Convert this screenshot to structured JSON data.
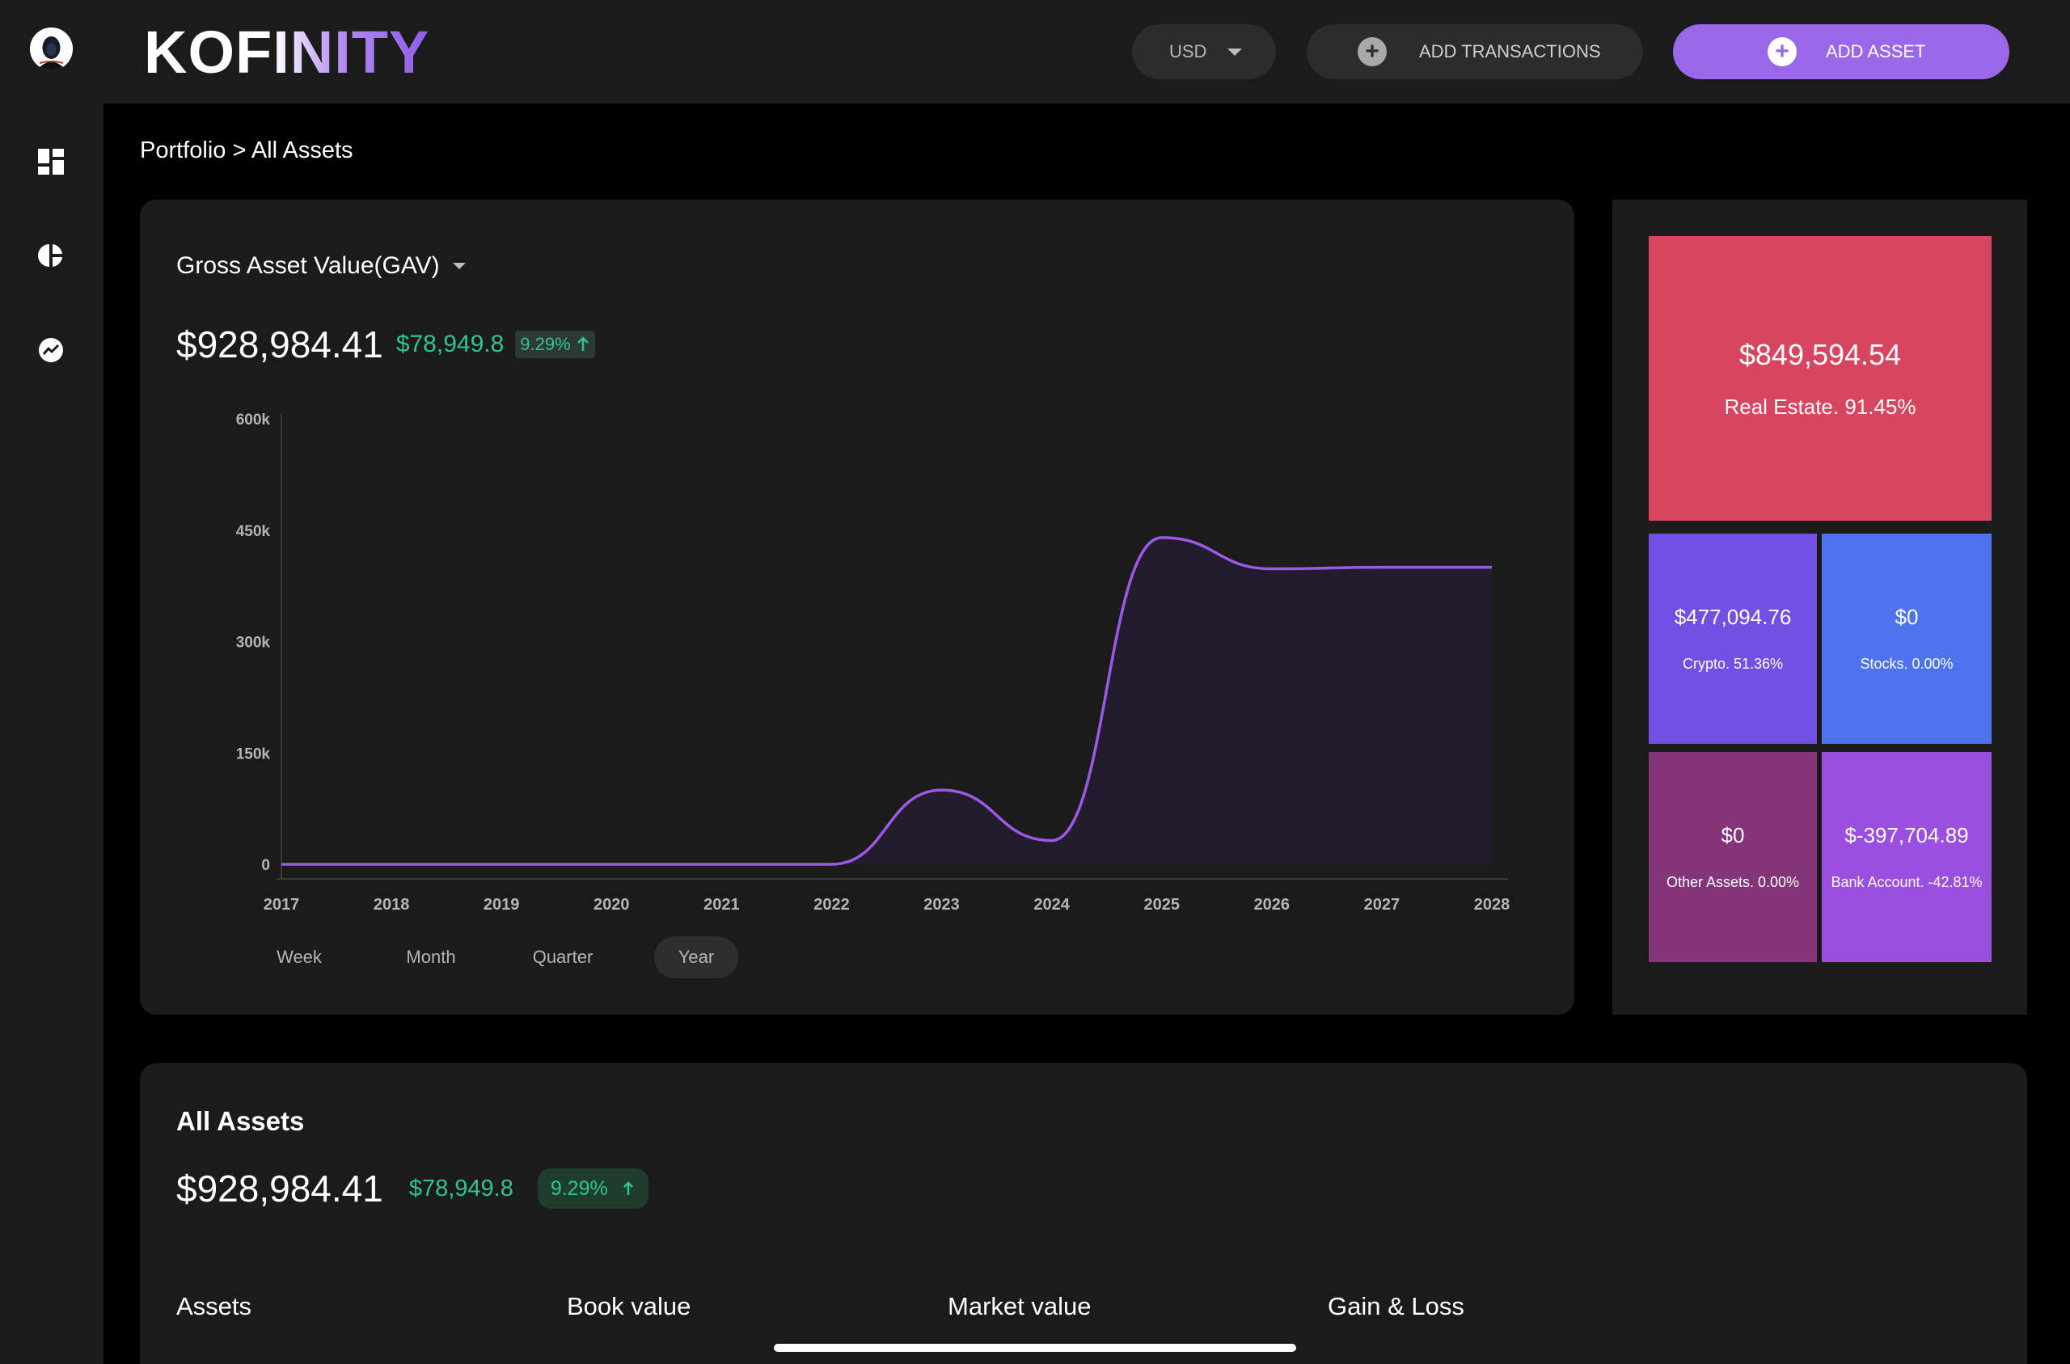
{
  "app": {
    "logo_text": "KOFINITY"
  },
  "sidebar": {
    "items": [
      {
        "name": "dashboard-icon"
      },
      {
        "name": "pie-chart-icon"
      },
      {
        "name": "trending-icon"
      }
    ]
  },
  "header": {
    "currency": "USD",
    "add_transactions_label": "ADD TRANSACTIONS",
    "add_asset_label": "ADD ASSET"
  },
  "breadcrumb": "Portfolio > All Assets",
  "gav": {
    "title": "Gross Asset Value(GAV)",
    "value": "$928,984.41",
    "gain": "$78,949.8",
    "percent": "9.29%",
    "periods": [
      "Week",
      "Month",
      "Quarter",
      "Year"
    ],
    "active_period": "Year"
  },
  "chart_data": {
    "type": "area",
    "title": "",
    "xlabel": "",
    "ylabel": "",
    "x": [
      "2017",
      "2018",
      "2019",
      "2020",
      "2021",
      "2022",
      "2023",
      "2024",
      "2025",
      "2026",
      "2027",
      "2028"
    ],
    "values": [
      0,
      0,
      0,
      0,
      0,
      0,
      100000,
      32000,
      440000,
      398000,
      400000,
      400000
    ],
    "ylim": [
      0,
      600000
    ],
    "yticks": [
      "0",
      "150k",
      "300k",
      "450k",
      "600k"
    ],
    "series_color": "#9b59e6",
    "grid": false,
    "legend": "none"
  },
  "treemap": {
    "tiles": [
      {
        "value": "$849,594.54",
        "label": "Real Estate. 91.45%",
        "color": "#d8455f"
      },
      {
        "value": "$477,094.76",
        "label": "Crypto. 51.36%",
        "color": "#7250e3"
      },
      {
        "value": "$0",
        "label": "Stocks. 0.00%",
        "color": "#4d73ef"
      },
      {
        "value": "$0",
        "label": "Other Assets. 0.00%",
        "color": "#843579"
      },
      {
        "value": "$-397,704.89",
        "label": "Bank Account. -42.81%",
        "color": "#9a4fe0"
      }
    ]
  },
  "all_assets": {
    "title": "All Assets",
    "value": "$928,984.41",
    "gain": "$78,949.8",
    "percent": "9.29%",
    "columns": [
      "Assets",
      "Book value",
      "Market value",
      "Gain & Loss"
    ]
  },
  "colors": {
    "accent": "#9b67e9",
    "positive": "#2fc493",
    "card_bg": "#1b1b1b"
  }
}
